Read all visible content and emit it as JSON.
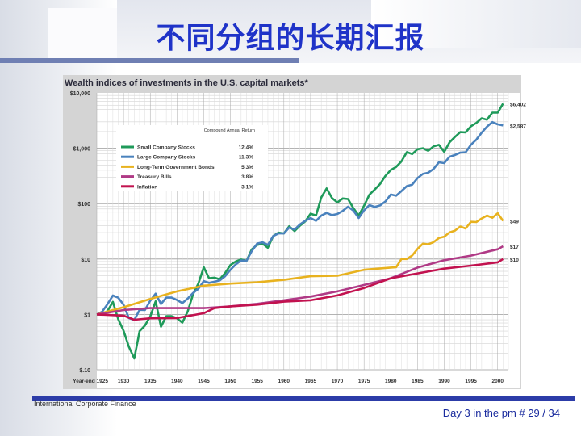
{
  "slide": {
    "title": "不同分组的长期汇报",
    "footer_left": "International Corporate Finance",
    "footer_right": "Day 3 in the pm # 29 / 34"
  },
  "chart_data": {
    "type": "line",
    "title": "Wealth indices of investments in the U.S. capital markets*",
    "y_scale": "log",
    "ylim": [
      0.1,
      10000
    ],
    "y_ticks": [
      {
        "value": 10000,
        "label": "$10,000"
      },
      {
        "value": 1000,
        "label": "$1,000"
      },
      {
        "value": 100,
        "label": "$100"
      },
      {
        "value": 10,
        "label": "$10"
      },
      {
        "value": 1,
        "label": "$1"
      },
      {
        "value": 0.1,
        "label": "$.10"
      }
    ],
    "xlim": [
      1925,
      2002
    ],
    "x_ticks": [
      {
        "value": 1925,
        "label": "Year-end 1925"
      },
      {
        "value": 1930,
        "label": "1930"
      },
      {
        "value": 1935,
        "label": "1935"
      },
      {
        "value": 1940,
        "label": "1940"
      },
      {
        "value": 1945,
        "label": "1945"
      },
      {
        "value": 1950,
        "label": "1950"
      },
      {
        "value": 1955,
        "label": "1955"
      },
      {
        "value": 1960,
        "label": "1960"
      },
      {
        "value": 1965,
        "label": "1965"
      },
      {
        "value": 1970,
        "label": "1970"
      },
      {
        "value": 1975,
        "label": "1975"
      },
      {
        "value": 1980,
        "label": "1980"
      },
      {
        "value": 1985,
        "label": "1985"
      },
      {
        "value": 1990,
        "label": "1990"
      },
      {
        "value": 1995,
        "label": "1995"
      },
      {
        "value": 2000,
        "label": "2000"
      }
    ],
    "grid": true,
    "legend_header": "Compound Annual Return",
    "legend_placement": "top-left",
    "series": [
      {
        "name": "Small Company Stocks",
        "return": "12.4%",
        "end_label": "$6,402",
        "color": "#1f9a5a",
        "points": [
          [
            1925,
            1
          ],
          [
            1926,
            0.99
          ],
          [
            1927,
            1.15
          ],
          [
            1928,
            1.68
          ],
          [
            1929,
            0.82
          ],
          [
            1930,
            0.51
          ],
          [
            1931,
            0.26
          ],
          [
            1932,
            0.16
          ],
          [
            1933,
            0.5
          ],
          [
            1934,
            0.63
          ],
          [
            1935,
            0.92
          ],
          [
            1936,
            1.72
          ],
          [
            1937,
            0.6
          ],
          [
            1938,
            0.93
          ],
          [
            1939,
            0.93
          ],
          [
            1940,
            0.85
          ],
          [
            1941,
            0.71
          ],
          [
            1942,
            1.13
          ],
          [
            1943,
            2.3
          ],
          [
            1944,
            3.6
          ],
          [
            1945,
            7.1
          ],
          [
            1946,
            4.5
          ],
          [
            1947,
            4.6
          ],
          [
            1948,
            4.3
          ],
          [
            1949,
            5.6
          ],
          [
            1950,
            7.8
          ],
          [
            1951,
            9
          ],
          [
            1952,
            9.8
          ],
          [
            1953,
            9.3
          ],
          [
            1954,
            15
          ],
          [
            1955,
            18
          ],
          [
            1956,
            19
          ],
          [
            1957,
            16
          ],
          [
            1958,
            26
          ],
          [
            1959,
            30
          ],
          [
            1960,
            29
          ],
          [
            1961,
            39
          ],
          [
            1962,
            32
          ],
          [
            1963,
            40
          ],
          [
            1964,
            48
          ],
          [
            1965,
            66
          ],
          [
            1966,
            61
          ],
          [
            1967,
            130
          ],
          [
            1968,
            188
          ],
          [
            1969,
            126
          ],
          [
            1970,
            105
          ],
          [
            1971,
            124
          ],
          [
            1972,
            121
          ],
          [
            1973,
            83
          ],
          [
            1974,
            61
          ],
          [
            1975,
            92
          ],
          [
            1976,
            145
          ],
          [
            1977,
            180
          ],
          [
            1978,
            226
          ],
          [
            1979,
            318
          ],
          [
            1980,
            405
          ],
          [
            1981,
            460
          ],
          [
            1982,
            580
          ],
          [
            1983,
            850
          ],
          [
            1984,
            785
          ],
          [
            1985,
            960
          ],
          [
            1986,
            1000
          ],
          [
            1987,
            900
          ],
          [
            1988,
            1080
          ],
          [
            1989,
            1150
          ],
          [
            1990,
            860
          ],
          [
            1991,
            1280
          ],
          [
            1992,
            1600
          ],
          [
            1993,
            1960
          ],
          [
            1994,
            1940
          ],
          [
            1995,
            2490
          ],
          [
            1996,
            2870
          ],
          [
            1997,
            3470
          ],
          [
            1998,
            3280
          ],
          [
            1999,
            4390
          ],
          [
            2000,
            4400
          ],
          [
            2001,
            6400
          ]
        ]
      },
      {
        "name": "Large Company Stocks",
        "return": "11.3%",
        "end_label": "$2,587",
        "color": "#4a82bd",
        "points": [
          [
            1925,
            1
          ],
          [
            1926,
            1.12
          ],
          [
            1927,
            1.53
          ],
          [
            1928,
            2.2
          ],
          [
            1929,
            2.0
          ],
          [
            1930,
            1.5
          ],
          [
            1931,
            0.86
          ],
          [
            1932,
            0.79
          ],
          [
            1933,
            1.21
          ],
          [
            1934,
            1.2
          ],
          [
            1935,
            1.77
          ],
          [
            1936,
            2.37
          ],
          [
            1937,
            1.54
          ],
          [
            1938,
            2.02
          ],
          [
            1939,
            2.01
          ],
          [
            1940,
            1.82
          ],
          [
            1941,
            1.6
          ],
          [
            1942,
            1.93
          ],
          [
            1943,
            2.43
          ],
          [
            1944,
            2.9
          ],
          [
            1945,
            4.0
          ],
          [
            1946,
            3.7
          ],
          [
            1947,
            3.9
          ],
          [
            1948,
            4.1
          ],
          [
            1949,
            4.9
          ],
          [
            1950,
            6.4
          ],
          [
            1951,
            8.0
          ],
          [
            1952,
            9.4
          ],
          [
            1953,
            9.3
          ],
          [
            1954,
            14
          ],
          [
            1955,
            19
          ],
          [
            1956,
            20
          ],
          [
            1957,
            18
          ],
          [
            1958,
            26
          ],
          [
            1959,
            29
          ],
          [
            1960,
            29
          ],
          [
            1961,
            37
          ],
          [
            1962,
            34
          ],
          [
            1963,
            42
          ],
          [
            1964,
            49
          ],
          [
            1965,
            55
          ],
          [
            1966,
            49
          ],
          [
            1967,
            61
          ],
          [
            1968,
            68
          ],
          [
            1969,
            62
          ],
          [
            1970,
            65
          ],
          [
            1971,
            74
          ],
          [
            1972,
            88
          ],
          [
            1973,
            75
          ],
          [
            1974,
            55
          ],
          [
            1975,
            76
          ],
          [
            1976,
            94
          ],
          [
            1977,
            87
          ],
          [
            1978,
            93
          ],
          [
            1979,
            110
          ],
          [
            1980,
            146
          ],
          [
            1981,
            139
          ],
          [
            1982,
            169
          ],
          [
            1983,
            207
          ],
          [
            1984,
            220
          ],
          [
            1985,
            290
          ],
          [
            1986,
            344
          ],
          [
            1987,
            362
          ],
          [
            1988,
            423
          ],
          [
            1989,
            557
          ],
          [
            1990,
            540
          ],
          [
            1991,
            704
          ],
          [
            1992,
            758
          ],
          [
            1993,
            834
          ],
          [
            1994,
            845
          ],
          [
            1995,
            1160
          ],
          [
            1996,
            1430
          ],
          [
            1997,
            1910
          ],
          [
            1998,
            2450
          ],
          [
            1999,
            2970
          ],
          [
            2000,
            2700
          ],
          [
            2001,
            2587
          ]
        ]
      },
      {
        "name": "Long-Term Government Bonds",
        "return": "5.3%",
        "end_label": "$49",
        "color": "#e8b21f",
        "points": [
          [
            1925,
            1
          ],
          [
            1930,
            1.35
          ],
          [
            1935,
            1.9
          ],
          [
            1940,
            2.6
          ],
          [
            1945,
            3.3
          ],
          [
            1950,
            3.6
          ],
          [
            1955,
            3.8
          ],
          [
            1960,
            4.2
          ],
          [
            1965,
            4.9
          ],
          [
            1970,
            5.0
          ],
          [
            1975,
            6.4
          ],
          [
            1980,
            7.0
          ],
          [
            1981,
            7.1
          ],
          [
            1982,
            10.0
          ],
          [
            1983,
            10.0
          ],
          [
            1984,
            11.6
          ],
          [
            1985,
            15.2
          ],
          [
            1986,
            18.9
          ],
          [
            1987,
            18.4
          ],
          [
            1988,
            20.2
          ],
          [
            1989,
            23.9
          ],
          [
            1990,
            25.3
          ],
          [
            1991,
            30.2
          ],
          [
            1992,
            32.6
          ],
          [
            1993,
            38.7
          ],
          [
            1994,
            35.6
          ],
          [
            1995,
            47.0
          ],
          [
            1996,
            46.5
          ],
          [
            1997,
            53.9
          ],
          [
            1998,
            60.9
          ],
          [
            1999,
            55.6
          ],
          [
            2000,
            67.1
          ],
          [
            2001,
            49
          ]
        ]
      },
      {
        "name": "Treasury Bills",
        "return": "3.8%",
        "end_label": "$17",
        "color": "#b03a86",
        "points": [
          [
            1925,
            1
          ],
          [
            1930,
            1.2
          ],
          [
            1935,
            1.3
          ],
          [
            1940,
            1.3
          ],
          [
            1945,
            1.3
          ],
          [
            1950,
            1.4
          ],
          [
            1955,
            1.55
          ],
          [
            1960,
            1.8
          ],
          [
            1965,
            2.1
          ],
          [
            1970,
            2.6
          ],
          [
            1975,
            3.4
          ],
          [
            1980,
            4.5
          ],
          [
            1985,
            7.0
          ],
          [
            1990,
            9.5
          ],
          [
            1995,
            11.5
          ],
          [
            2000,
            15
          ],
          [
            2001,
            17
          ]
        ]
      },
      {
        "name": "Inflation",
        "return": "3.1%",
        "end_label": "$10",
        "color": "#c2124f",
        "points": [
          [
            1925,
            1
          ],
          [
            1930,
            0.95
          ],
          [
            1932,
            0.8
          ],
          [
            1935,
            0.85
          ],
          [
            1940,
            0.86
          ],
          [
            1945,
            1.05
          ],
          [
            1947,
            1.3
          ],
          [
            1950,
            1.4
          ],
          [
            1955,
            1.5
          ],
          [
            1960,
            1.7
          ],
          [
            1965,
            1.8
          ],
          [
            1970,
            2.2
          ],
          [
            1975,
            3.0
          ],
          [
            1980,
            4.5
          ],
          [
            1985,
            5.5
          ],
          [
            1990,
            6.7
          ],
          [
            1995,
            7.6
          ],
          [
            2000,
            8.7
          ],
          [
            2001,
            10
          ]
        ]
      }
    ]
  }
}
